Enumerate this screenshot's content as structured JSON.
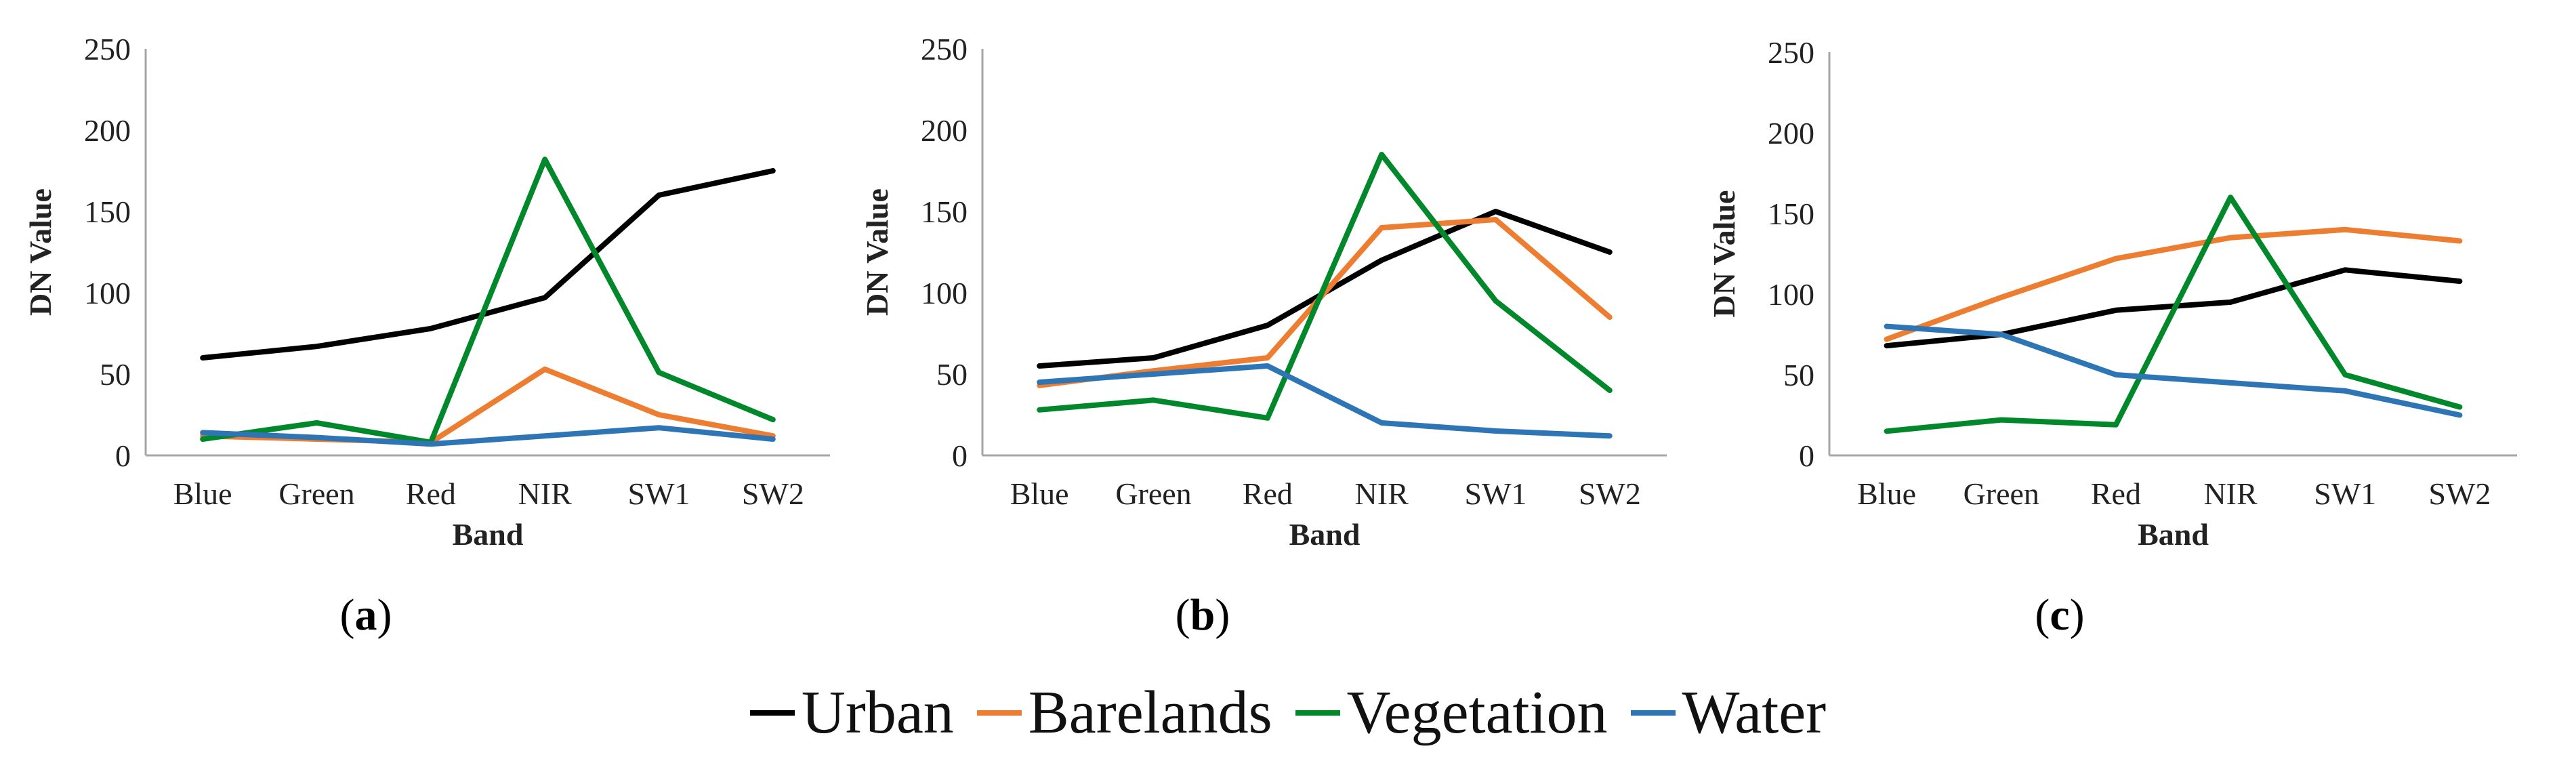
{
  "chart_data": [
    {
      "type": "line",
      "panel_label": "a",
      "categories": [
        "Blue",
        "Green",
        "Red",
        "NIR",
        "SW1",
        "SW2"
      ],
      "xlabel": "Band",
      "ylabel": "DN Value",
      "ylim": [
        0,
        250
      ],
      "yticks": [
        0,
        50,
        100,
        150,
        200,
        250
      ],
      "series": [
        {
          "name": "Urban",
          "color": "#000000",
          "values": [
            60,
            67,
            78,
            97,
            160,
            175
          ]
        },
        {
          "name": "Barelands",
          "color": "#ED7D31",
          "values": [
            12,
            10,
            8,
            53,
            25,
            12
          ]
        },
        {
          "name": "Vegetation",
          "color": "#00882B",
          "values": [
            10,
            20,
            8,
            182,
            51,
            22
          ]
        },
        {
          "name": "Water",
          "color": "#2E75B6",
          "values": [
            14,
            11,
            7,
            12,
            17,
            10
          ]
        }
      ]
    },
    {
      "type": "line",
      "panel_label": "b",
      "categories": [
        "Blue",
        "Green",
        "Red",
        "NIR",
        "SW1",
        "SW2"
      ],
      "xlabel": "Band",
      "ylabel": "DN Value",
      "ylim": [
        0,
        250
      ],
      "yticks": [
        0,
        50,
        100,
        150,
        200,
        250
      ],
      "series": [
        {
          "name": "Urban",
          "color": "#000000",
          "values": [
            55,
            60,
            80,
            120,
            150,
            125
          ]
        },
        {
          "name": "Barelands",
          "color": "#ED7D31",
          "values": [
            43,
            52,
            60,
            140,
            145,
            85
          ]
        },
        {
          "name": "Vegetation",
          "color": "#00882B",
          "values": [
            28,
            34,
            23,
            185,
            95,
            40
          ]
        },
        {
          "name": "Water",
          "color": "#2E75B6",
          "values": [
            45,
            50,
            55,
            20,
            15,
            12
          ]
        }
      ]
    },
    {
      "type": "line",
      "panel_label": "c",
      "categories": [
        "Blue",
        "Green",
        "Red",
        "NIR",
        "SW1",
        "SW2"
      ],
      "xlabel": "Band",
      "ylabel": "DN Value",
      "ylim": [
        0,
        250
      ],
      "yticks": [
        0,
        50,
        100,
        150,
        200,
        250
      ],
      "series": [
        {
          "name": "Urban",
          "color": "#000000",
          "values": [
            68,
            75,
            90,
            95,
            115,
            108
          ]
        },
        {
          "name": "Barelands",
          "color": "#ED7D31",
          "values": [
            72,
            98,
            122,
            135,
            140,
            133
          ]
        },
        {
          "name": "Vegetation",
          "color": "#00882B",
          "values": [
            15,
            22,
            19,
            160,
            50,
            30
          ]
        },
        {
          "name": "Water",
          "color": "#2E75B6",
          "values": [
            80,
            75,
            50,
            45,
            40,
            25
          ]
        }
      ]
    }
  ],
  "captions": [
    {
      "open": "(",
      "letter": "a",
      "close": ")"
    },
    {
      "open": "(",
      "letter": "b",
      "close": ")"
    },
    {
      "open": "(",
      "letter": "c",
      "close": ")"
    }
  ],
  "legend": [
    {
      "label": "Urban",
      "color": "#000000"
    },
    {
      "label": "Barelands",
      "color": "#ED7D31"
    },
    {
      "label": "Vegetation",
      "color": "#00882B"
    },
    {
      "label": "Water",
      "color": "#2E75B6"
    }
  ]
}
